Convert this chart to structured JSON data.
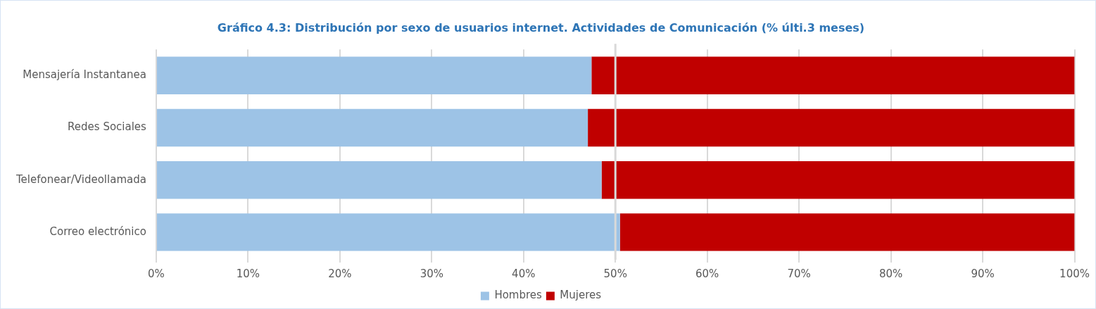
{
  "chart_data": {
    "type": "bar",
    "orientation": "horizontal",
    "stacked": true,
    "title": "Gráfico 4.3: Distribución por sexo de usuarios internet. Actividades de Comunicación (% últi.3 meses)",
    "categories": [
      "Mensajería Instantanea",
      "Redes Sociales",
      "Telefonear/Videollamada",
      "Correo electrónico"
    ],
    "series": [
      {
        "name": "Hombres",
        "color": "#9dc3e6",
        "values": [
          47.4,
          47.0,
          48.5,
          50.5
        ]
      },
      {
        "name": "Mujeres",
        "color": "#c00000",
        "values": [
          52.6,
          53.0,
          51.5,
          49.5
        ]
      }
    ],
    "xlim": [
      0,
      100
    ],
    "xticks": [
      {
        "value": 0,
        "label": "0%"
      },
      {
        "value": 10,
        "label": "10%"
      },
      {
        "value": 20,
        "label": "20%"
      },
      {
        "value": 30,
        "label": "30%"
      },
      {
        "value": 40,
        "label": "40%"
      },
      {
        "value": 50,
        "label": "50%"
      },
      {
        "value": 60,
        "label": "60%"
      },
      {
        "value": 70,
        "label": "70%"
      },
      {
        "value": 80,
        "label": "80%"
      },
      {
        "value": 90,
        "label": "90%"
      },
      {
        "value": 100,
        "label": "100%"
      }
    ],
    "ref_lines": [
      {
        "axis": "x",
        "value": 50,
        "color": "#d9d9d9"
      }
    ],
    "grid": "x",
    "legend": "bottom"
  }
}
